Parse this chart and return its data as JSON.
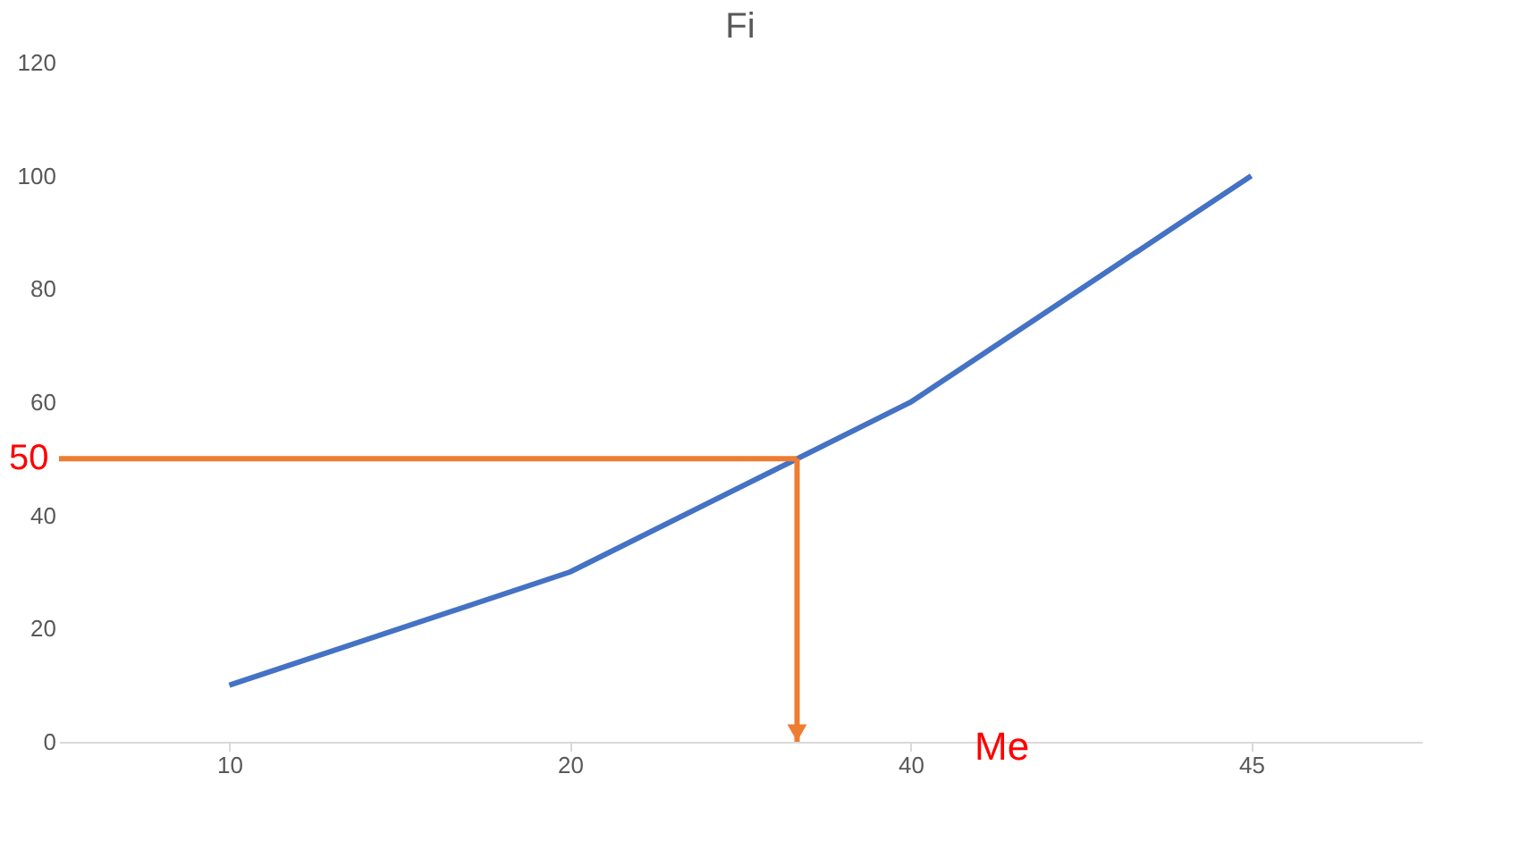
{
  "chart_data": {
    "type": "line",
    "title": "Fi",
    "categories": [
      "10",
      "20",
      "40",
      "45"
    ],
    "series": [
      {
        "color": "#4472c4",
        "values": [
          10,
          30,
          60,
          100
        ]
      }
    ],
    "ylim": [
      0,
      120
    ],
    "yticks": [
      0,
      20,
      40,
      60,
      80,
      100,
      120
    ],
    "grid": false,
    "marker": "none",
    "line_style": "solid",
    "ref_lines": [
      {
        "axis": "y",
        "value": 50,
        "label": "50",
        "color": "#ed7d31"
      }
    ],
    "annotations": [
      "Me"
    ]
  }
}
